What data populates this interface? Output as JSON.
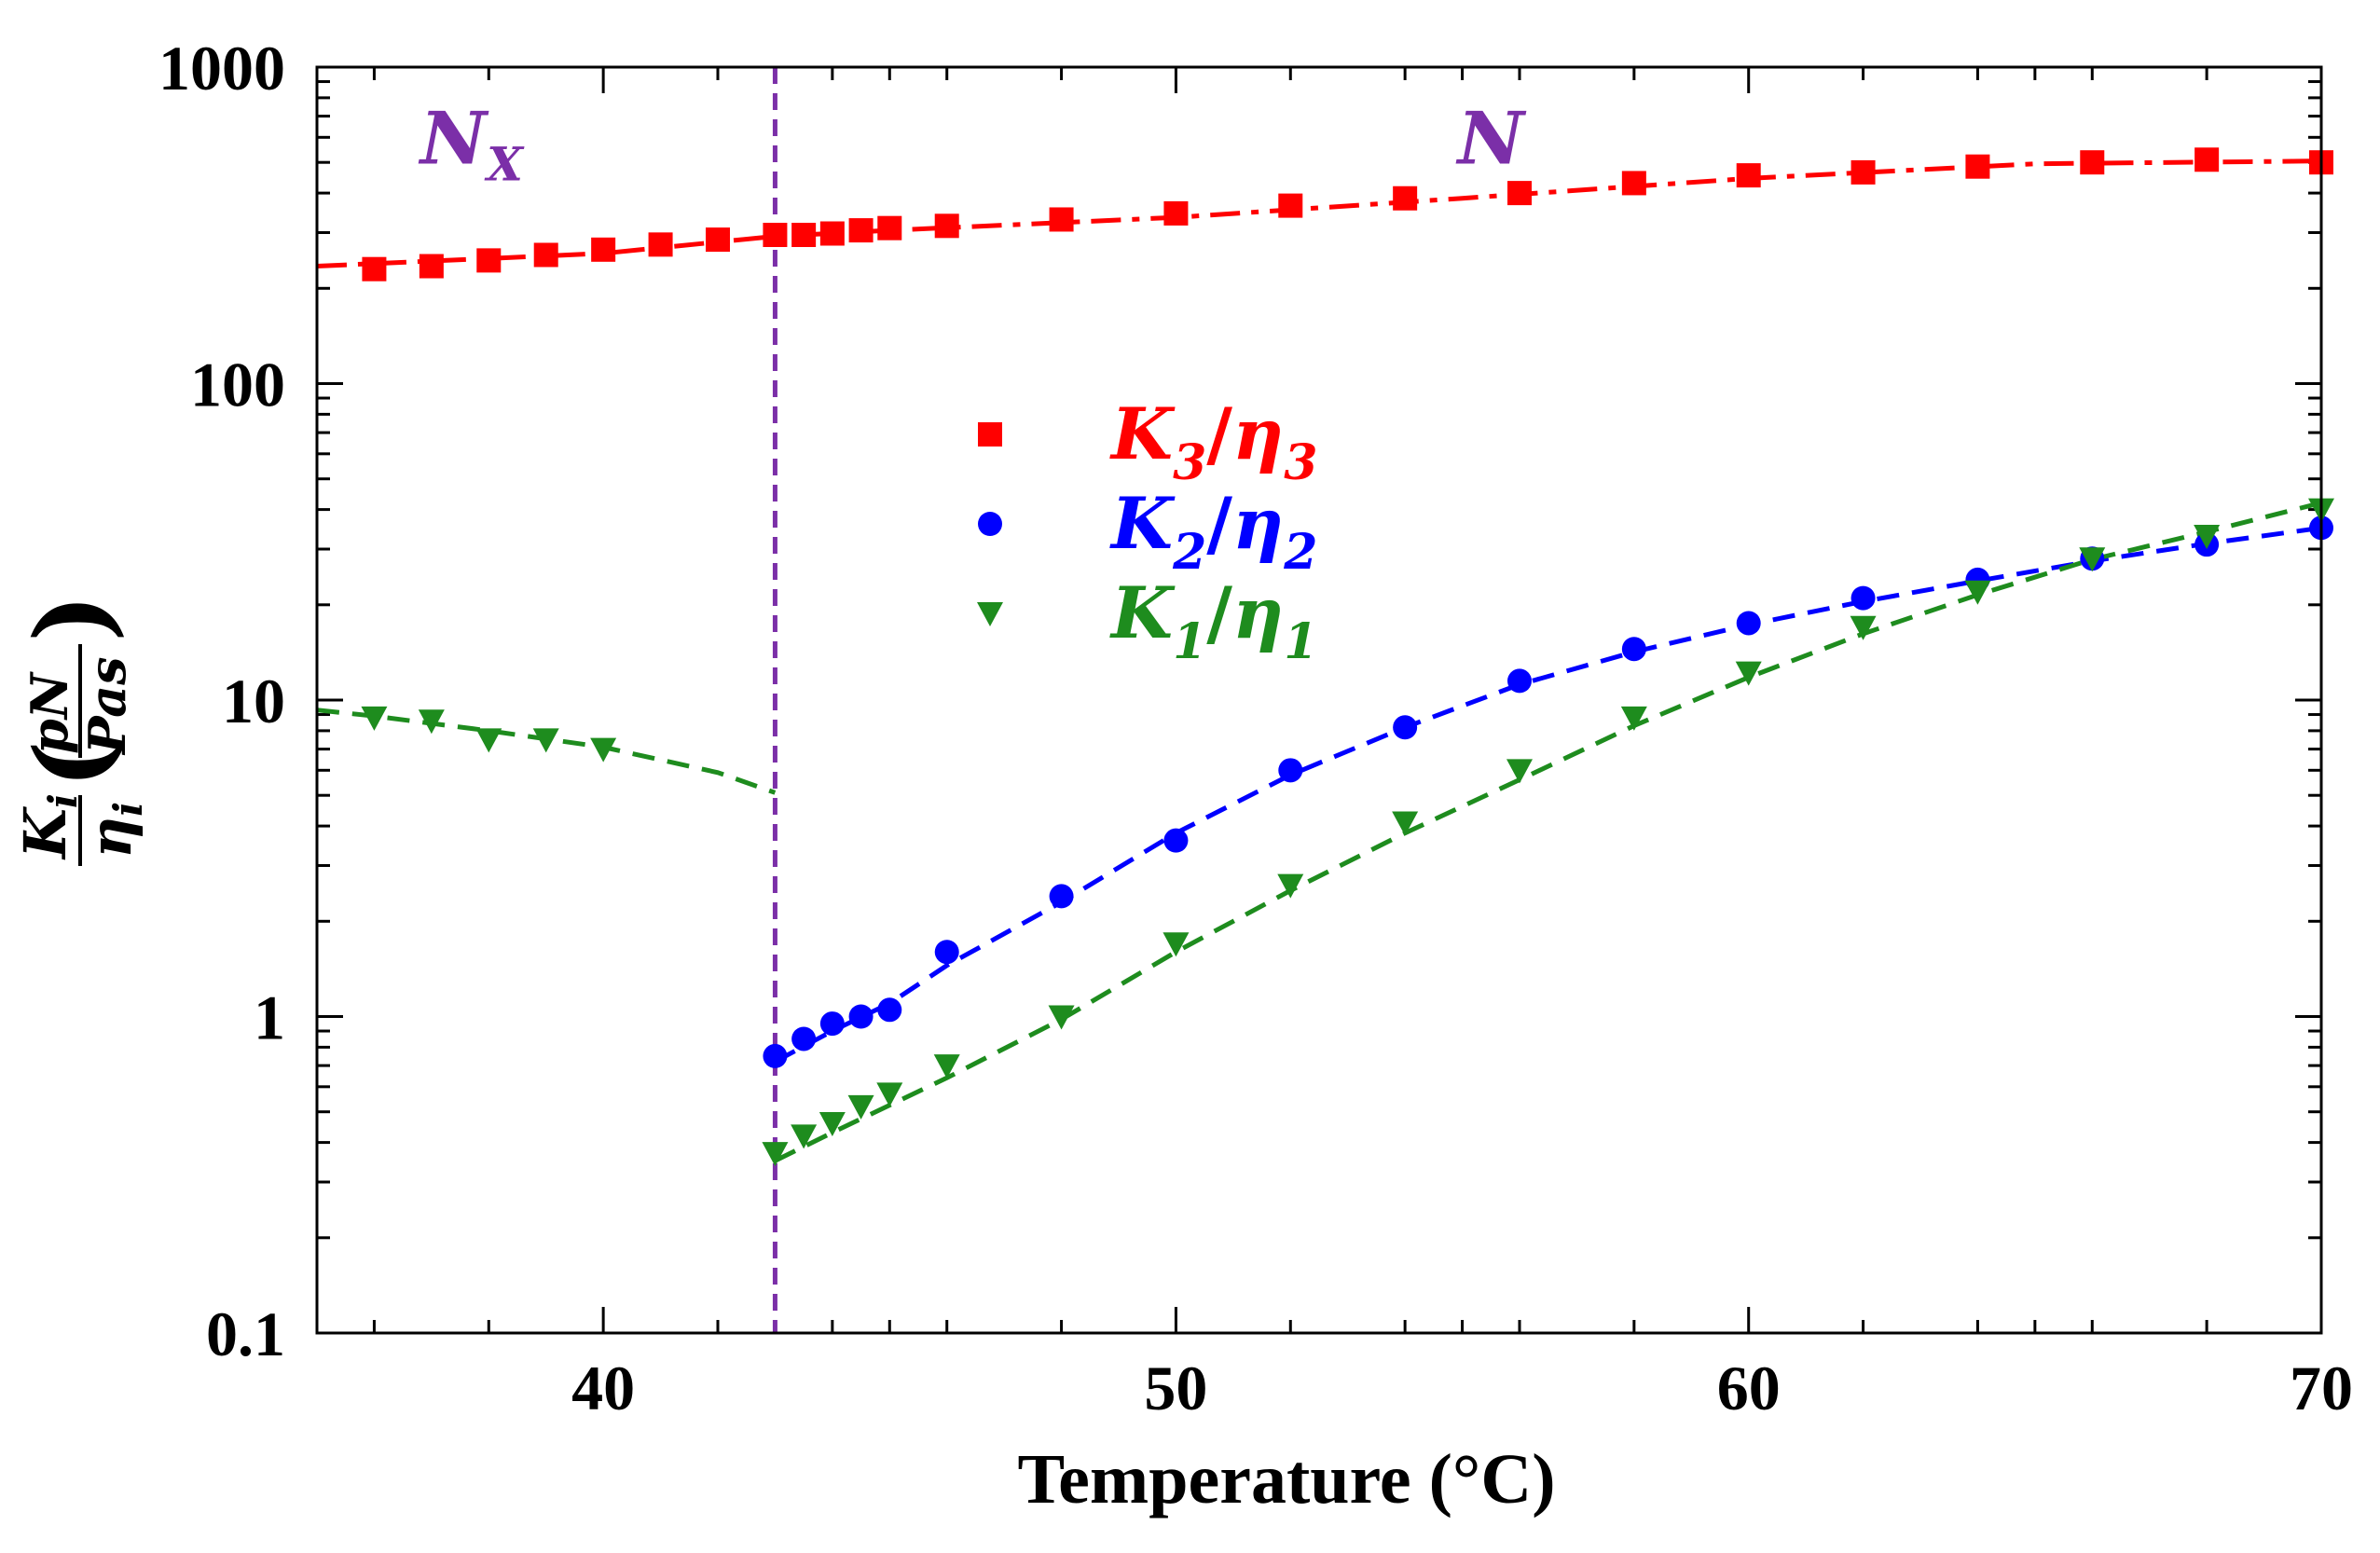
{
  "chart_data": {
    "type": "scatter",
    "title": "",
    "xlabel": "Temperature (°C)",
    "ylabel": "K_i/η_i (pN/Pas)",
    "ylabel_parts": {
      "num_base": "K",
      "num_sub": "i",
      "den_base": "η",
      "den_sub": "i",
      "unit_num": "pN",
      "unit_den": "Pas",
      "paren_open": "(",
      "paren_close": ")"
    },
    "xlim": [
      35,
      70
    ],
    "ylim": [
      0.1,
      1000
    ],
    "yscale": "log",
    "x_ticks": [
      40,
      50,
      60,
      70
    ],
    "x_tick_labels": [
      "40",
      "50",
      "60",
      "70"
    ],
    "y_ticks": [
      0.1,
      1,
      10,
      100,
      1000
    ],
    "y_tick_labels": [
      "0.1",
      "1",
      "10",
      "100",
      "1000"
    ],
    "phase_boundary": {
      "x": 43,
      "color": "#7B2FA8"
    },
    "phase_labels": [
      {
        "text": "N",
        "sub": "X",
        "x": 37.7,
        "y": 600
      },
      {
        "text": "N",
        "sub": "",
        "x": 55.5,
        "y": 600
      }
    ],
    "legend_position": "center",
    "series": [
      {
        "name": "K3/η3",
        "label_base": "K",
        "label_sub": "3",
        "label_sep": "/",
        "label_base2": "η",
        "label_sub2": "3",
        "color": "#FF0000",
        "marker": "square",
        "x": [
          36,
          37,
          38,
          39,
          40,
          41,
          42,
          43,
          43.5,
          44,
          44.5,
          45,
          46,
          48,
          50,
          52,
          54,
          56,
          58,
          60,
          62,
          64,
          66,
          68,
          70
        ],
        "y": [
          230,
          235,
          245,
          255,
          265,
          275,
          285,
          295,
          295,
          298,
          305,
          310,
          315,
          330,
          345,
          365,
          385,
          400,
          430,
          455,
          465,
          485,
          500,
          510,
          500
        ],
        "fit": {
          "style": "dashdot",
          "x": [
            35,
            40,
            43,
            45,
            50,
            55,
            60,
            65,
            70
          ],
          "y": [
            235,
            258,
            292,
            305,
            335,
            385,
            445,
            495,
            505
          ]
        }
      },
      {
        "name": "K2/η2",
        "label_base": "K",
        "label_sub": "2",
        "label_sep": "/",
        "label_base2": "η",
        "label_sub2": "2",
        "color": "#0000FF",
        "marker": "circle",
        "x": [
          43,
          43.5,
          44,
          44.5,
          45,
          46,
          48,
          50,
          52,
          54,
          56,
          58,
          60,
          62,
          64,
          66,
          68,
          70
        ],
        "y": [
          0.75,
          0.85,
          0.95,
          1.0,
          1.05,
          1.6,
          2.4,
          3.6,
          6.0,
          8.2,
          11.5,
          14.5,
          17.5,
          21,
          24,
          28,
          31,
          35
        ],
        "fit": {
          "style": "dashed",
          "x": [
            43,
            44,
            45,
            46,
            48,
            50,
            52,
            54,
            56,
            58,
            60,
            62,
            64,
            66,
            68,
            70
          ],
          "y": [
            0.72,
            0.9,
            1.1,
            1.45,
            2.3,
            3.8,
            5.8,
            8.2,
            11.2,
            14.2,
            17.3,
            20.5,
            23.8,
            27.5,
            31.2,
            35
          ]
        }
      },
      {
        "name": "K1/η1",
        "label_base": "K",
        "label_sub": "1",
        "label_sep": "/",
        "label_base2": "η",
        "label_sub2": "1",
        "color": "#1E8C1E",
        "marker": "triangle-down",
        "x": [
          36,
          37,
          38,
          39,
          40,
          43,
          43.5,
          44,
          44.5,
          45,
          46,
          48,
          50,
          52,
          54,
          56,
          58,
          60,
          62,
          64,
          66,
          68,
          70
        ],
        "y": [
          8.8,
          8.6,
          7.5,
          7.5,
          7.0,
          0.37,
          0.42,
          0.46,
          0.52,
          0.57,
          0.7,
          1.0,
          1.7,
          2.6,
          4.1,
          6.0,
          8.8,
          12.2,
          17,
          22,
          28,
          33,
          40
        ],
        "fit": {
          "style": "dashed",
          "x": [
            35,
            36,
            38,
            40,
            42,
            43
          ],
          "y": [
            9.3,
            8.9,
            8.0,
            7.1,
            5.9,
            5.1
          ]
        },
        "fit2": {
          "style": "dashed",
          "x": [
            43,
            44,
            46,
            48,
            50,
            52,
            54,
            56,
            58,
            60,
            62,
            64,
            66,
            68,
            70
          ],
          "y": [
            0.35,
            0.43,
            0.64,
            0.98,
            1.6,
            2.5,
            3.8,
            5.6,
            8.3,
            11.8,
            16.2,
            21.5,
            27.8,
            34,
            42
          ]
        }
      }
    ]
  }
}
